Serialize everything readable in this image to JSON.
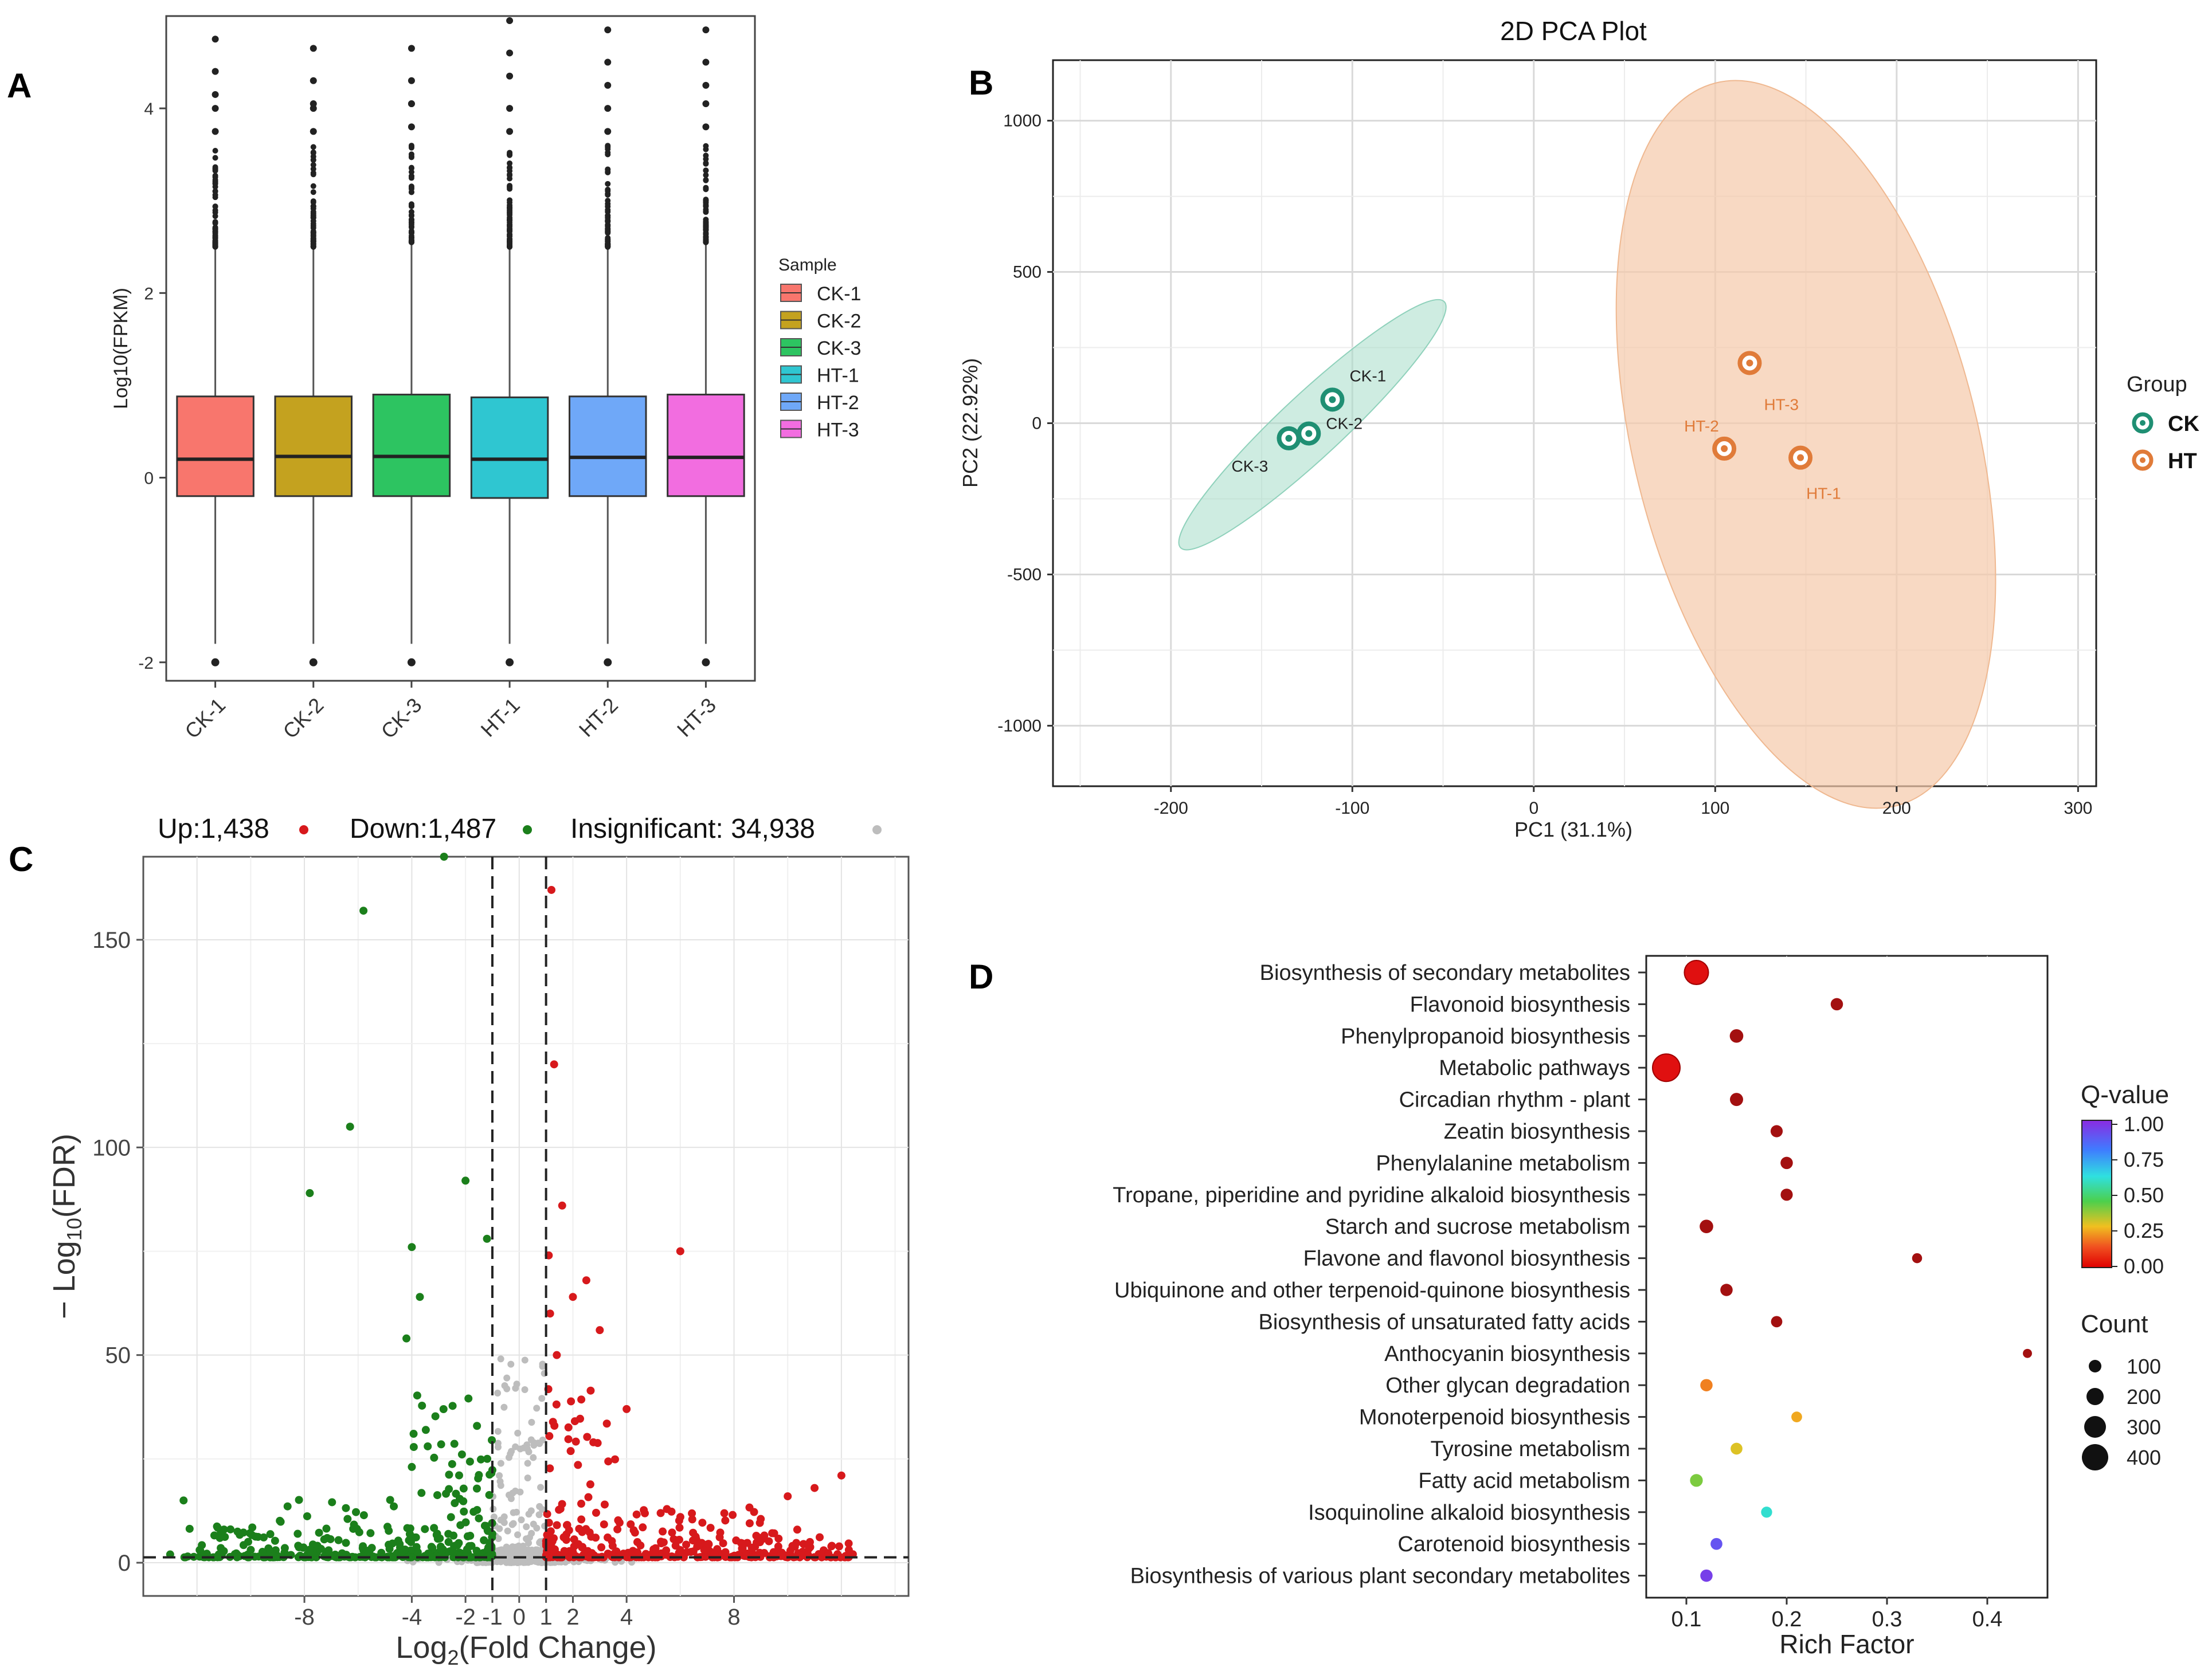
{
  "chart_data": [
    {
      "panel": "A",
      "type": "box",
      "title": "",
      "xlabel": "",
      "ylabel": "Log10(FPKM)",
      "ylim": [
        -2.2,
        5.0
      ],
      "yticks": [
        -2,
        0,
        2,
        4
      ],
      "legend_title": "Sample",
      "legend_position": "right",
      "categories": [
        "CK-1",
        "CK-2",
        "CK-3",
        "HT-1",
        "HT-2",
        "HT-3"
      ],
      "colors": [
        "#F8766D",
        "#C4A21F",
        "#2DC461",
        "#2FC6D1",
        "#6FA8F8",
        "#F26DE0"
      ],
      "boxes": [
        {
          "name": "CK-1",
          "q1": -0.2,
          "median": 0.2,
          "q3": 0.88,
          "whisker_low": -1.8,
          "whisker_high": 2.5,
          "outlier_min": -2.0,
          "outlier_max": 4.75
        },
        {
          "name": "CK-2",
          "q1": -0.2,
          "median": 0.23,
          "q3": 0.88,
          "whisker_low": -1.8,
          "whisker_high": 2.5,
          "outlier_min": -2.0,
          "outlier_max": 4.65
        },
        {
          "name": "CK-3",
          "q1": -0.2,
          "median": 0.23,
          "q3": 0.9,
          "whisker_low": -1.8,
          "whisker_high": 2.55,
          "outlier_min": -2.0,
          "outlier_max": 4.65
        },
        {
          "name": "HT-1",
          "q1": -0.22,
          "median": 0.2,
          "q3": 0.87,
          "whisker_low": -1.8,
          "whisker_high": 2.5,
          "outlier_min": -2.0,
          "outlier_max": 4.95
        },
        {
          "name": "HT-2",
          "q1": -0.2,
          "median": 0.22,
          "q3": 0.88,
          "whisker_low": -1.8,
          "whisker_high": 2.5,
          "outlier_min": -2.0,
          "outlier_max": 4.85
        },
        {
          "name": "HT-3",
          "q1": -0.2,
          "median": 0.22,
          "q3": 0.9,
          "whisker_low": -1.8,
          "whisker_high": 2.55,
          "outlier_min": -2.0,
          "outlier_max": 4.85
        }
      ]
    },
    {
      "panel": "B",
      "type": "scatter",
      "title": "2D PCA Plot",
      "xlabel": "PC1 (31.1%)",
      "ylabel": "PC2 (22.92%)",
      "xlim": [
        -265,
        310
      ],
      "ylim": [
        -1200,
        1200
      ],
      "xticks": [
        -200,
        -100,
        0,
        100,
        200,
        300
      ],
      "yticks": [
        -1000,
        -500,
        0,
        500,
        1000
      ],
      "legend_title": "Group",
      "legend_position": "right",
      "groups": [
        {
          "name": "CK",
          "color": "#1F8F73",
          "ellipse_color": "#A6DCC9",
          "points": [
            {
              "label": "CK-1",
              "x": -111,
              "y": 78
            },
            {
              "label": "CK-2",
              "x": -124,
              "y": -34
            },
            {
              "label": "CK-3",
              "x": -135,
              "y": -50
            }
          ]
        },
        {
          "name": "HT",
          "color": "#E07B39",
          "ellipse_color": "#F5C9A9",
          "points": [
            {
              "label": "HT-3",
              "x": 119,
              "y": 199
            },
            {
              "label": "HT-2",
              "x": 105,
              "y": -84
            },
            {
              "label": "HT-1",
              "x": 147,
              "y": -114
            }
          ]
        }
      ]
    },
    {
      "panel": "C",
      "type": "volcano",
      "xlabel": "Log2(Fold Change)",
      "ylabel": "−Log10(FDR)",
      "xlim": [
        -14,
        14.5
      ],
      "ylim": [
        -8,
        170
      ],
      "xticks": [
        -8,
        -4,
        -2,
        -1,
        0,
        1,
        2,
        4,
        8
      ],
      "yticks": [
        0,
        50,
        100,
        150
      ],
      "thresholds": {
        "log2fc": [
          -1,
          1
        ],
        "neg_log10_fdr": 1.3
      },
      "legend": [
        {
          "label": "Up:1,438",
          "color": "#D7191C"
        },
        {
          "label": "Down:1,487",
          "color": "#1B7F1B"
        },
        {
          "label": "Insignificant: 34,938",
          "color": "#BDBDBD"
        }
      ],
      "highlight_points": {
        "up": [
          [
            1.2,
            162
          ],
          [
            1.3,
            120
          ],
          [
            1.6,
            86
          ],
          [
            6,
            75
          ],
          [
            2.5,
            68
          ],
          [
            2,
            64
          ],
          [
            3,
            56
          ],
          [
            1.4,
            50
          ],
          [
            4,
            37
          ],
          [
            1.1,
            74
          ],
          [
            1.15,
            60
          ],
          [
            12,
            21
          ],
          [
            11,
            18
          ],
          [
            10,
            16
          ]
        ],
        "down": [
          [
            -2.8,
            170
          ],
          [
            -5.8,
            157
          ],
          [
            -6.3,
            105
          ],
          [
            -2,
            92
          ],
          [
            -7.8,
            89
          ],
          [
            -1.2,
            78
          ],
          [
            -4,
            76
          ],
          [
            -3.7,
            64
          ],
          [
            -4.2,
            54
          ],
          [
            -12.5,
            15
          ],
          [
            -13,
            2
          ]
        ]
      }
    },
    {
      "panel": "D",
      "type": "bubble",
      "xlabel": "Rich Factor",
      "ylabel": "",
      "xlim": [
        0.06,
        0.46
      ],
      "xticks": [
        0.1,
        0.2,
        0.3,
        0.4
      ],
      "color_title": "Q-value",
      "color_ticks": [
        "1.00",
        "0.75",
        "0.50",
        "0.25",
        "0.00"
      ],
      "size_title": "Count",
      "size_ticks": [
        "100",
        "200",
        "300",
        "400"
      ],
      "legend_position": "right",
      "terms": [
        {
          "name": "Biosynthesis of secondary metabolites",
          "rich": 0.11,
          "count": 300,
          "q": 0.0
        },
        {
          "name": "Flavonoid biosynthesis",
          "rich": 0.25,
          "count": 30,
          "q": 0.0
        },
        {
          "name": "Phenylpropanoid biosynthesis",
          "rich": 0.15,
          "count": 45,
          "q": 0.0
        },
        {
          "name": "Metabolic pathways",
          "rich": 0.08,
          "count": 430,
          "q": 0.0
        },
        {
          "name": "Circadian rhythm - plant",
          "rich": 0.15,
          "count": 40,
          "q": 0.01
        },
        {
          "name": "Zeatin biosynthesis",
          "rich": 0.19,
          "count": 28,
          "q": 0.01
        },
        {
          "name": "Phenylalanine metabolism",
          "rich": 0.2,
          "count": 30,
          "q": 0.01
        },
        {
          "name": "Tropane, piperidine and pyridine alkaloid biosynthesis",
          "rich": 0.2,
          "count": 28,
          "q": 0.02
        },
        {
          "name": "Starch and sucrose metabolism",
          "rich": 0.12,
          "count": 45,
          "q": 0.02
        },
        {
          "name": "Flavone and flavonol biosynthesis",
          "rich": 0.33,
          "count": 10,
          "q": 0.02
        },
        {
          "name": "Ubiquinone and other terpenoid-quinone biosynthesis",
          "rich": 0.14,
          "count": 30,
          "q": 0.03
        },
        {
          "name": "Biosynthesis of unsaturated fatty acids",
          "rich": 0.19,
          "count": 20,
          "q": 0.03
        },
        {
          "name": "Anthocyanin biosynthesis",
          "rich": 0.44,
          "count": 5,
          "q": 0.04
        },
        {
          "name": "Other glycan degradation",
          "rich": 0.12,
          "count": 30,
          "q": 0.2
        },
        {
          "name": "Monoterpenoid biosynthesis",
          "rich": 0.21,
          "count": 15,
          "q": 0.25
        },
        {
          "name": "Tyrosine metabolism",
          "rich": 0.15,
          "count": 25,
          "q": 0.3
        },
        {
          "name": "Fatty acid metabolism",
          "rich": 0.11,
          "count": 35,
          "q": 0.4
        },
        {
          "name": "Isoquinoline alkaloid biosynthesis",
          "rich": 0.18,
          "count": 18,
          "q": 0.6
        },
        {
          "name": "Carotenoid biosynthesis",
          "rich": 0.13,
          "count": 25,
          "q": 0.9
        },
        {
          "name": "Biosynthesis of various plant secondary metabolites",
          "rich": 0.12,
          "count": 30,
          "q": 0.95
        }
      ]
    }
  ],
  "panel_labels": [
    "A",
    "B",
    "C",
    "D"
  ]
}
